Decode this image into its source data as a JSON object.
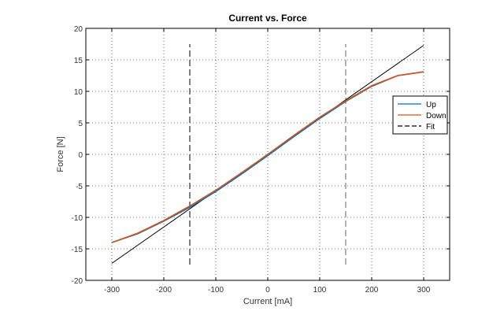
{
  "chart_data": {
    "type": "line",
    "title": "Current vs. Force",
    "xlabel": "Current [mA]",
    "ylabel": "Force [N]",
    "xlim": [
      -350,
      350
    ],
    "ylim": [
      -20,
      20
    ],
    "xticks": [
      -300,
      -200,
      -100,
      0,
      100,
      200,
      300
    ],
    "yticks": [
      -20,
      -15,
      -10,
      -5,
      0,
      5,
      10,
      15,
      20
    ],
    "grid": true,
    "legend_position": "right",
    "series": [
      {
        "name": "Up",
        "color": "#0072bd",
        "style": "solid",
        "x": [
          -300,
          -250,
          -200,
          -150,
          -100,
          -50,
          0,
          50,
          100,
          150,
          200,
          250,
          300
        ],
        "y": [
          -14.0,
          -12.6,
          -10.6,
          -8.4,
          -5.9,
          -3.1,
          -0.2,
          2.8,
          5.7,
          8.4,
          10.8,
          12.5,
          13.1
        ]
      },
      {
        "name": "Down",
        "color": "#d95319",
        "style": "solid",
        "x": [
          -300,
          -250,
          -200,
          -150,
          -100,
          -50,
          0,
          50,
          100,
          150,
          200,
          250,
          300
        ],
        "y": [
          -14.0,
          -12.5,
          -10.5,
          -8.2,
          -5.7,
          -2.9,
          0.0,
          3.0,
          5.9,
          8.5,
          10.9,
          12.5,
          13.1
        ]
      },
      {
        "name": "Fit",
        "color": "#000000",
        "style": "solid",
        "x": [
          -300,
          300
        ],
        "y": [
          -17.3,
          17.3
        ]
      }
    ],
    "vlines": [
      {
        "x": -150,
        "y": [
          -17.5,
          17.5
        ],
        "color": "#000000",
        "style": "dashed"
      },
      {
        "x": 150,
        "y": [
          -17.5,
          17.5
        ],
        "color": "#666666",
        "style": "dashed"
      }
    ],
    "legend": [
      {
        "label": "Up",
        "color": "#0072bd",
        "style": "solid"
      },
      {
        "label": "Down",
        "color": "#d95319",
        "style": "solid"
      },
      {
        "label": "Fit",
        "color": "#000000",
        "style": "dashed"
      }
    ]
  }
}
